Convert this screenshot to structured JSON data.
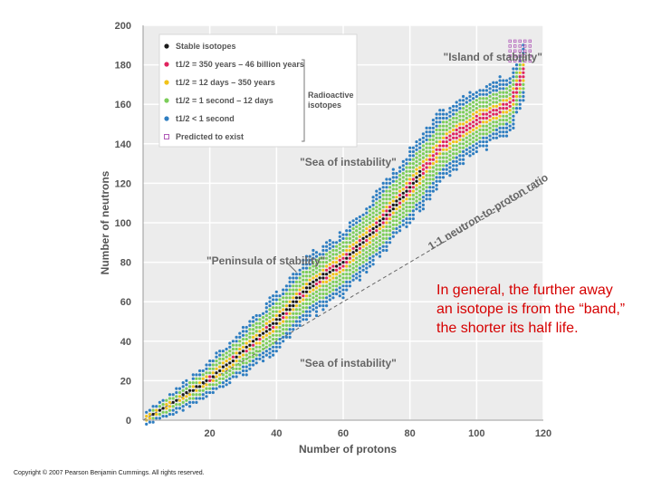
{
  "chart_data": {
    "type": "scatter",
    "xlabel": "Number of protons",
    "ylabel": "Number of neutrons",
    "xlim": [
      0,
      120
    ],
    "ylim": [
      0,
      200
    ],
    "xticks": [
      "20",
      "40",
      "60",
      "80",
      "100",
      "120"
    ],
    "yticks": [
      "0",
      "20",
      "40",
      "60",
      "80",
      "100",
      "120",
      "140",
      "160",
      "180",
      "200"
    ],
    "grid": true,
    "legend": {
      "placement": "top-left",
      "items": [
        {
          "label": "Stable isotopes",
          "color": "#1a1a1a",
          "marker": "dot"
        },
        {
          "label": "t1/2 = 350 years – 46 billion years",
          "color": "#e0245e",
          "marker": "dot"
        },
        {
          "label": "t1/2 = 12 days – 350 years",
          "color": "#f2c318",
          "marker": "dot"
        },
        {
          "label": "t1/2 = 1 second – 12 days",
          "color": "#7ccd5a",
          "marker": "dot"
        },
        {
          "label": "t1/2 < 1 second",
          "color": "#2f7ec1",
          "marker": "dot"
        },
        {
          "label": "Predicted to exist",
          "color": "#b05ab8",
          "marker": "square"
        }
      ],
      "group_label": "Radioactive isotopes"
    },
    "annotations": [
      {
        "text": "\"Island of stability\"",
        "x": 90,
        "y": 182
      },
      {
        "text": "\"Sea of instability\"",
        "x": 47,
        "y": 129
      },
      {
        "text": "\"Peninsula of stability\"",
        "x": 19,
        "y": 79
      },
      {
        "text": "\"Sea of instability\"",
        "x": 47,
        "y": 27
      },
      {
        "text": "1:1 neutron-to-proton ratio",
        "x": 104,
        "y": 104
      }
    ],
    "reference_line": {
      "label": "1:1 neutron-to-proton ratio",
      "points": [
        [
          0,
          0
        ],
        [
          120,
          120
        ]
      ]
    },
    "band": {
      "description": "nuclides",
      "centerline": [
        [
          1,
          1
        ],
        [
          10,
          10
        ],
        [
          20,
          21
        ],
        [
          30,
          35
        ],
        [
          40,
          50
        ],
        [
          50,
          68
        ],
        [
          60,
          80
        ],
        [
          70,
          98
        ],
        [
          80,
          118
        ],
        [
          90,
          140
        ],
        [
          100,
          152
        ],
        [
          110,
          160
        ],
        [
          114,
          176
        ]
      ],
      "halfwidth_blue": [
        [
          1,
          3
        ],
        [
          40,
          14
        ],
        [
          80,
          18
        ],
        [
          110,
          14
        ]
      ],
      "halfwidth_green": [
        [
          1,
          2
        ],
        [
          40,
          10
        ],
        [
          80,
          13
        ],
        [
          110,
          9
        ]
      ],
      "halfwidth_yellow": [
        [
          1,
          1
        ],
        [
          40,
          4
        ],
        [
          80,
          5
        ],
        [
          110,
          4
        ]
      ],
      "halfwidth_red": [
        [
          1,
          0.5
        ],
        [
          40,
          2
        ],
        [
          80,
          2.5
        ],
        [
          110,
          2
        ]
      ]
    },
    "stable_band_end_z": 83,
    "predicted_cluster": {
      "x": [
        110,
        116
      ],
      "y": [
        182,
        194
      ]
    }
  },
  "caption": "In general, the further away an isotope is from the “band,” the shorter its half life.",
  "copyright": "Copyright © 2007 Pearson Benjamin Cummings. All rights reserved."
}
